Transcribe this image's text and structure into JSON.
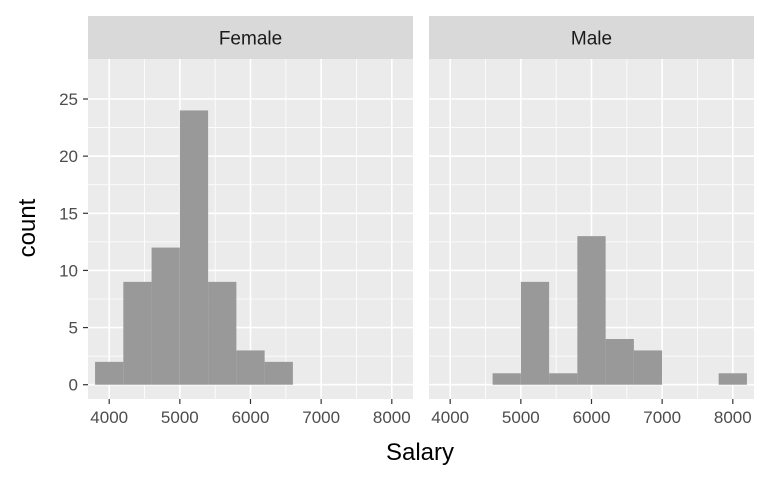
{
  "chart_data": {
    "type": "histogram",
    "xlabel": "Salary",
    "ylabel": "count",
    "xlim": [
      3700,
      8300
    ],
    "ylim": [
      -1.25,
      28.5
    ],
    "x_ticks": [
      4000,
      5000,
      6000,
      7000,
      8000
    ],
    "y_ticks": [
      0,
      5,
      10,
      15,
      20,
      25
    ],
    "bin_width": 400,
    "bar_color": "#999999",
    "panel_background": "#ebebeb",
    "strip_background": "#d9d9d9",
    "grid": true,
    "facets": [
      {
        "label": "Female",
        "bins": [
          {
            "x0": 3800,
            "x1": 4200,
            "count": 2
          },
          {
            "x0": 4200,
            "x1": 4600,
            "count": 9
          },
          {
            "x0": 4600,
            "x1": 5000,
            "count": 12
          },
          {
            "x0": 5000,
            "x1": 5400,
            "count": 24
          },
          {
            "x0": 5400,
            "x1": 5800,
            "count": 9
          },
          {
            "x0": 5800,
            "x1": 6200,
            "count": 3
          },
          {
            "x0": 6200,
            "x1": 6600,
            "count": 2
          }
        ]
      },
      {
        "label": "Male",
        "bins": [
          {
            "x0": 4600,
            "x1": 5000,
            "count": 1
          },
          {
            "x0": 5000,
            "x1": 5400,
            "count": 9
          },
          {
            "x0": 5400,
            "x1": 5800,
            "count": 1
          },
          {
            "x0": 5800,
            "x1": 6200,
            "count": 13
          },
          {
            "x0": 6200,
            "x1": 6600,
            "count": 4
          },
          {
            "x0": 6600,
            "x1": 7000,
            "count": 3
          },
          {
            "x0": 7800,
            "x1": 8200,
            "count": 1
          }
        ]
      }
    ]
  }
}
